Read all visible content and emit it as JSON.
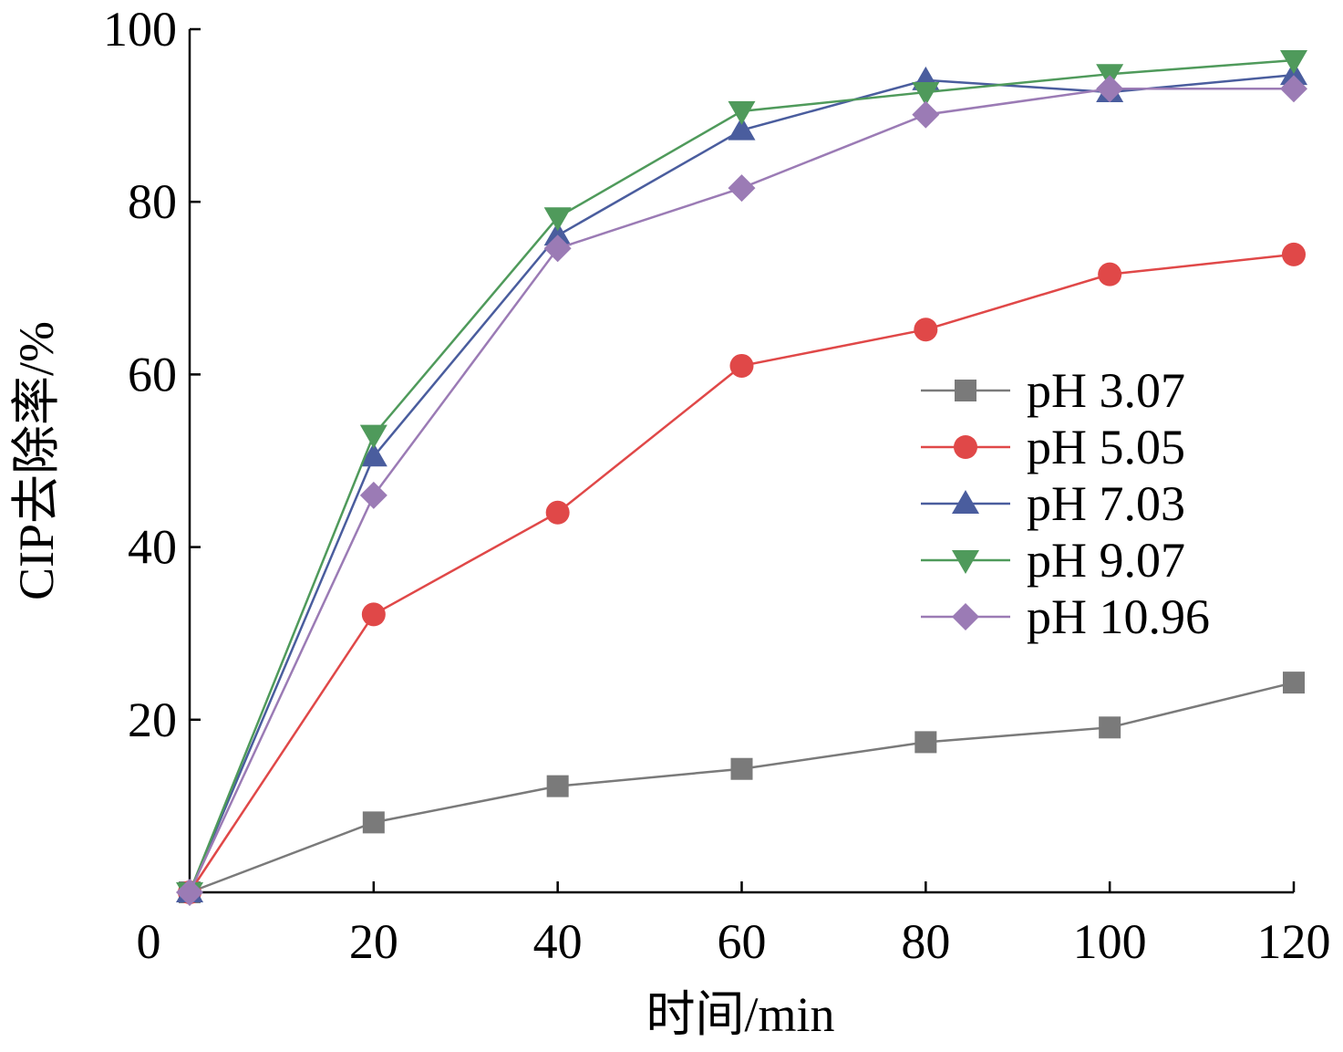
{
  "chart_data": {
    "type": "line",
    "title": "",
    "xlabel": "时间/min",
    "ylabel": "CIP去除率/%",
    "xlim": [
      0,
      120
    ],
    "ylim": [
      0,
      100
    ],
    "x_ticks": [
      0,
      20,
      40,
      60,
      80,
      100,
      120
    ],
    "y_ticks": [
      20,
      40,
      60,
      80,
      100
    ],
    "x_tick_labels": [
      "0",
      "20",
      "40",
      "60",
      "80",
      "100",
      "120"
    ],
    "y_tick_labels": [
      "20",
      "40",
      "60",
      "80",
      "100"
    ],
    "grid": false,
    "legend_position": "center-right",
    "x": [
      0,
      20,
      40,
      60,
      80,
      100,
      120
    ],
    "series": [
      {
        "name": "pH 3.07",
        "marker": "square",
        "color": "#7a7a7a",
        "values": [
          0,
          8.1,
          12.3,
          14.3,
          17.4,
          19.1,
          24.3
        ]
      },
      {
        "name": "pH 5.05",
        "marker": "circle",
        "color": "#e04848",
        "values": [
          0,
          32.2,
          44.0,
          61.0,
          65.2,
          71.6,
          73.9
        ]
      },
      {
        "name": "pH 7.03",
        "marker": "triangle-up",
        "color": "#4a5d9e",
        "values": [
          0,
          50.5,
          76.1,
          88.3,
          94.1,
          92.7,
          94.7
        ]
      },
      {
        "name": "pH 9.07",
        "marker": "triangle-down",
        "color": "#4f9a5b",
        "values": [
          0,
          53.0,
          78.2,
          90.5,
          92.7,
          94.8,
          96.4
        ]
      },
      {
        "name": "pH 10.96",
        "marker": "diamond",
        "color": "#9b7bb5",
        "values": [
          0,
          46.0,
          74.6,
          81.6,
          90.1,
          93.1,
          93.1
        ]
      }
    ]
  }
}
